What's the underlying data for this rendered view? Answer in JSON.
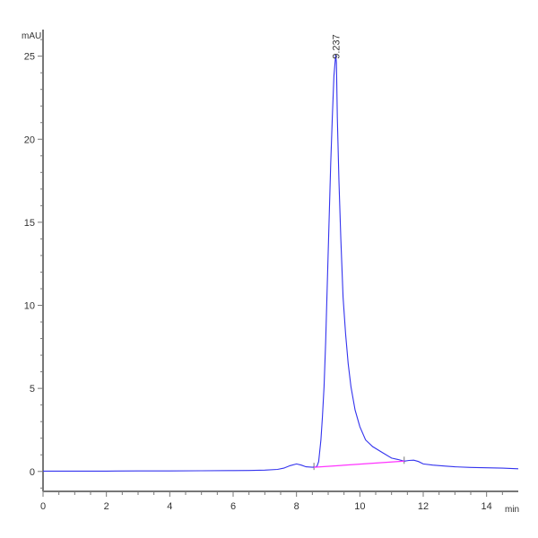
{
  "chart_data": {
    "type": "line",
    "title": "",
    "xlabel": "min",
    "ylabel": "mAU",
    "xlim": [
      0,
      15
    ],
    "ylim": [
      -1.2,
      26.6
    ],
    "x_ticks": [
      0,
      2,
      4,
      6,
      8,
      10,
      12,
      14
    ],
    "x_tick_labels": [
      "0",
      "2",
      "4",
      "6",
      "8",
      "10",
      "12",
      "14"
    ],
    "y_ticks": [
      0,
      5,
      10,
      15,
      20,
      25
    ],
    "y_tick_labels": [
      "0",
      "5",
      "10",
      "15",
      "20",
      "25"
    ],
    "grid": false,
    "colors": {
      "trace": "#3333ee",
      "baseline": "#ff33ff",
      "axis": "#777777"
    },
    "series": [
      {
        "x": [
          0,
          1,
          2,
          3,
          4,
          5,
          6,
          6.5,
          7,
          7.4,
          7.6,
          7.8,
          8.0,
          8.15,
          8.3,
          8.5,
          8.6,
          8.65,
          8.7,
          8.77,
          8.82,
          8.87,
          8.92,
          8.96,
          9.02,
          9.08,
          9.13,
          9.18,
          9.237,
          9.26,
          9.29,
          9.34,
          9.4,
          9.47,
          9.55,
          9.63,
          9.72,
          9.85,
          10.0,
          10.18,
          10.4,
          10.7,
          11.0,
          11.2,
          11.4,
          11.55,
          11.7,
          11.85,
          12.0,
          12.3,
          12.7,
          13.0,
          13.5,
          14.0,
          14.5,
          15.0
        ],
        "y": [
          0.02,
          0.02,
          0.02,
          0.03,
          0.03,
          0.04,
          0.05,
          0.06,
          0.08,
          0.12,
          0.2,
          0.35,
          0.45,
          0.38,
          0.28,
          0.25,
          0.27,
          0.32,
          0.6,
          1.9,
          3.3,
          5.1,
          7.8,
          10.5,
          14.5,
          18.5,
          21.3,
          23.8,
          25.1,
          24.6,
          21.3,
          17.5,
          14.0,
          10.5,
          8.3,
          6.5,
          5.1,
          3.7,
          2.7,
          1.9,
          1.5,
          1.15,
          0.8,
          0.72,
          0.62,
          0.66,
          0.68,
          0.6,
          0.45,
          0.38,
          0.32,
          0.28,
          0.24,
          0.22,
          0.2,
          0.16
        ]
      }
    ],
    "integration_baseline": {
      "x": [
        8.55,
        11.4
      ],
      "y": [
        0.25,
        0.62
      ]
    },
    "annotations": [
      {
        "x": 9.237,
        "y": 25.1,
        "text": "9.237"
      }
    ]
  }
}
